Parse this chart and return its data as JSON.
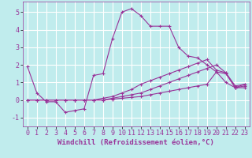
{
  "background_color": "#c0eced",
  "grid_color": "#ffffff",
  "line_color": "#993399",
  "marker_color": "#993399",
  "xlabel": "Windchill (Refroidissement éolien,°C)",
  "xlabel_fontsize": 6.5,
  "tick_fontsize": 6.0,
  "xlim": [
    -0.5,
    23.5
  ],
  "ylim": [
    -1.5,
    5.6
  ],
  "yticks": [
    -1,
    0,
    1,
    2,
    3,
    4,
    5
  ],
  "xticks": [
    0,
    1,
    2,
    3,
    4,
    5,
    6,
    7,
    8,
    9,
    10,
    11,
    12,
    13,
    14,
    15,
    16,
    17,
    18,
    19,
    20,
    21,
    22,
    23
  ],
  "series": [
    [
      1.9,
      0.4,
      -0.1,
      -0.1,
      -0.7,
      -0.6,
      -0.5,
      1.4,
      1.5,
      3.5,
      5.0,
      5.2,
      4.8,
      4.2,
      4.2,
      4.2,
      3.0,
      2.5,
      2.4,
      2.0,
      1.6,
      1.0,
      0.7,
      0.9
    ],
    [
      0.0,
      0.0,
      0.0,
      0.0,
      0.0,
      0.0,
      0.0,
      0.0,
      0.0,
      0.05,
      0.1,
      0.15,
      0.2,
      0.3,
      0.4,
      0.5,
      0.6,
      0.7,
      0.8,
      0.9,
      1.6,
      1.5,
      0.7,
      0.7
    ],
    [
      0.0,
      0.0,
      0.0,
      0.0,
      0.0,
      0.0,
      0.0,
      0.0,
      0.0,
      0.1,
      0.2,
      0.3,
      0.4,
      0.6,
      0.8,
      1.0,
      1.2,
      1.4,
      1.6,
      1.8,
      2.0,
      1.55,
      0.7,
      0.8
    ],
    [
      0.0,
      0.0,
      0.0,
      0.0,
      0.0,
      0.0,
      0.0,
      0.0,
      0.1,
      0.2,
      0.4,
      0.6,
      0.9,
      1.1,
      1.3,
      1.5,
      1.7,
      1.9,
      2.1,
      2.3,
      1.7,
      1.55,
      0.8,
      0.9
    ]
  ]
}
